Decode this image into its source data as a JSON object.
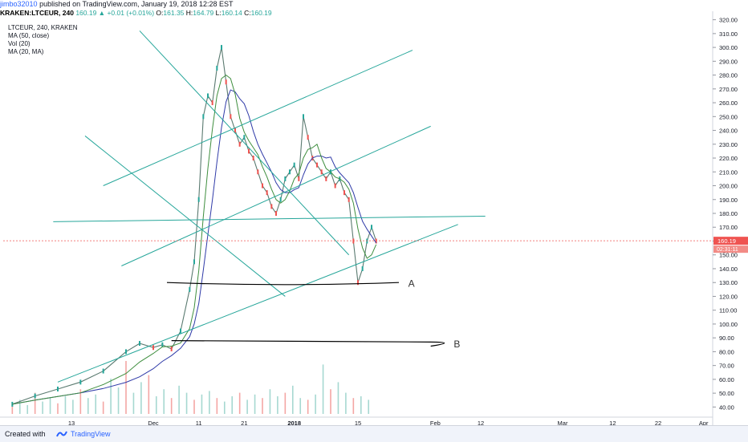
{
  "header": {
    "author": "jimbo32010",
    "published": "published on TradingView.com, January 19, 2018 12:28 EST",
    "symbol": "KRAKEN:LTCEUR, 240",
    "change": "160.19 ▲ +0.01 (+0.01%)",
    "open_label": "O:",
    "open": "161.35",
    "high_label": "H:",
    "high": "164.79",
    "low_label": "L:",
    "low": "160.14",
    "close_label": "C:",
    "close": "160.19"
  },
  "legend": {
    "symbol": "LTCEUR, 240, KRAKEN",
    "ma50": "MA (50, close)",
    "vol": "Vol (20)",
    "ma20": "MA (20, MA)"
  },
  "footer": {
    "created": "Created with",
    "brand": "TradingView"
  },
  "annotations": {
    "a": "A",
    "b": "B"
  },
  "price_tag": {
    "last": "160.19",
    "timer": "02:31:11"
  },
  "colors": {
    "up": "#26a69a",
    "down": "#ef5350",
    "ma50": "#2f3aa8",
    "ma20": "#3e8e3e",
    "trend": "#26a69a",
    "hand": "#000000",
    "bg": "#ffffff",
    "tag": "#ef5350"
  },
  "chart_data": {
    "type": "line",
    "title": "",
    "ylim": [
      35,
      325
    ],
    "yticks": [
      40,
      50,
      60,
      70,
      80,
      90,
      100,
      110,
      120,
      130,
      140,
      150,
      160,
      170,
      180,
      190,
      200,
      210,
      220,
      230,
      240,
      250,
      260,
      270,
      280,
      290,
      300,
      310,
      320
    ],
    "xticks": [
      {
        "label": "13",
        "day": 13
      },
      {
        "label": "Dec",
        "day": 31
      },
      {
        "label": "11",
        "day": 41
      },
      {
        "label": "21",
        "day": 51
      },
      {
        "label": "2018",
        "day": 62
      },
      {
        "label": "15",
        "day": 76
      },
      {
        "label": "Feb",
        "day": 93
      },
      {
        "label": "12",
        "day": 103
      },
      {
        "label": "Mar",
        "day": 121
      },
      {
        "label": "12",
        "day": 132
      },
      {
        "label": "22",
        "day": 142
      },
      {
        "label": "Apr",
        "day": 152
      }
    ],
    "series": [
      {
        "x": [
          0,
          5,
          10,
          15,
          20,
          25,
          28,
          31,
          33,
          35,
          37,
          39,
          40,
          41,
          42,
          43,
          44,
          45,
          46,
          47,
          48,
          49,
          50,
          51,
          52,
          53,
          54,
          55,
          56,
          57,
          58,
          59,
          60,
          61,
          62,
          63,
          64,
          65,
          66,
          67,
          68,
          69,
          70,
          71,
          72,
          73,
          74,
          75,
          76,
          77,
          78,
          79,
          80
        ],
        "values": [
          42,
          48,
          53,
          58,
          66,
          80,
          86,
          83,
          85,
          82,
          95,
          125,
          145,
          190,
          250,
          265,
          260,
          285,
          300,
          275,
          250,
          240,
          230,
          235,
          225,
          220,
          210,
          200,
          195,
          185,
          180,
          190,
          205,
          210,
          215,
          205,
          250,
          235,
          220,
          215,
          210,
          205,
          210,
          200,
          205,
          195,
          190,
          160,
          130,
          140,
          160,
          170,
          160
        ]
      }
    ],
    "volume_bars": [
      6,
      8,
      5,
      12,
      7,
      9,
      6,
      10,
      8,
      14,
      9,
      11,
      7,
      20,
      15,
      30,
      12,
      18,
      22,
      10,
      14,
      9,
      16,
      12,
      8,
      11,
      13,
      9,
      7,
      10,
      12,
      8,
      11,
      9,
      14,
      10,
      12,
      16,
      9,
      8,
      11,
      28,
      14,
      18,
      12,
      9,
      10,
      8
    ]
  }
}
